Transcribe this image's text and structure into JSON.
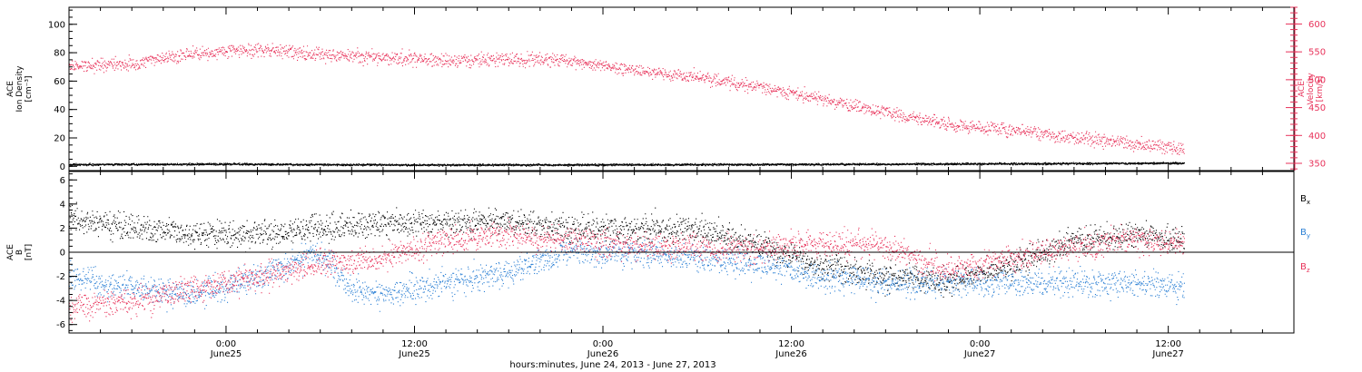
{
  "figure": {
    "footer": "hours:minutes, June 24, 2013 - June 27, 2013"
  },
  "x_axis": {
    "tick_labels": [
      {
        "time": "0:00",
        "date": "June25"
      },
      {
        "time": "12:00",
        "date": "June25"
      },
      {
        "time": "0:00",
        "date": "June26"
      },
      {
        "time": "12:00",
        "date": "June26"
      },
      {
        "time": "0:00",
        "date": "June27"
      },
      {
        "time": "12:00",
        "date": "June27"
      }
    ]
  },
  "chart_data": [
    {
      "type": "scatter",
      "panel": "top",
      "xlim": [
        "2013-06-24T14:00",
        "2013-06-27T20:00"
      ],
      "left_axis": {
        "label": [
          "ACE",
          "Ion Density",
          "[cm⁻³]"
        ],
        "ylim": [
          -3,
          112
        ],
        "ticks": [
          0,
          20,
          40,
          60,
          80,
          100
        ],
        "color": "#000000"
      },
      "right_axis": {
        "label": [
          "ACE",
          "Velocity",
          "[km/s]"
        ],
        "ylim": [
          337,
          630
        ],
        "ticks": [
          350,
          400,
          450,
          500,
          550,
          600
        ],
        "color": "#e8325a"
      },
      "series": [
        {
          "axis": "right",
          "color": "#e8325a",
          "x": [
            "2013-06-24T14:00",
            "2013-06-24T18:00",
            "2013-06-24T22:00",
            "2013-06-25T02:00",
            "2013-06-25T06:00",
            "2013-06-25T10:00",
            "2013-06-25T14:00",
            "2013-06-25T18:00",
            "2013-06-25T22:00",
            "2013-06-26T02:00",
            "2013-06-26T06:00",
            "2013-06-26T10:00",
            "2013-06-26T14:00",
            "2013-06-26T18:00",
            "2013-06-26T22:00",
            "2013-06-27T02:00",
            "2013-06-27T06:00",
            "2013-06-27T10:00",
            "2013-06-27T13:00"
          ],
          "y": [
            525,
            530,
            548,
            555,
            545,
            540,
            535,
            538,
            535,
            518,
            505,
            488,
            465,
            442,
            420,
            410,
            396,
            385,
            378
          ]
        },
        {
          "axis": "left",
          "color": "#000000",
          "x": [
            "2013-06-24T14:00",
            "2013-06-25T00:00",
            "2013-06-25T12:00",
            "2013-06-26T00:00",
            "2013-06-26T12:00",
            "2013-06-27T00:00",
            "2013-06-27T13:00"
          ],
          "y": [
            1.5,
            1.8,
            1.2,
            1.3,
            1.6,
            2.0,
            2.5
          ]
        }
      ]
    },
    {
      "type": "scatter",
      "panel": "bottom",
      "xlim": [
        "2013-06-24T14:00",
        "2013-06-27T20:00"
      ],
      "left_axis": {
        "label": [
          "ACE",
          "B",
          "[nT]"
        ],
        "ylim": [
          -6.7,
          6.7
        ],
        "ticks": [
          -6,
          -4,
          -2,
          0,
          2,
          4,
          6
        ]
      },
      "series": [
        {
          "name": "Bx",
          "color": "#000000",
          "x": [
            "2013-06-24T14:00",
            "2013-06-24T18:00",
            "2013-06-24T22:00",
            "2013-06-25T02:00",
            "2013-06-25T06:00",
            "2013-06-25T10:00",
            "2013-06-25T14:00",
            "2013-06-25T18:00",
            "2013-06-25T22:00",
            "2013-06-26T02:00",
            "2013-06-26T06:00",
            "2013-06-26T10:00",
            "2013-06-26T14:00",
            "2013-06-26T18:00",
            "2013-06-26T22:00",
            "2013-06-27T02:00",
            "2013-06-27T06:00",
            "2013-06-27T10:00",
            "2013-06-27T13:00"
          ],
          "y": [
            3.0,
            2.0,
            1.5,
            1.5,
            2.0,
            2.5,
            2.5,
            2.6,
            2.0,
            2.0,
            2.0,
            0.5,
            -1.0,
            -2.0,
            -2.5,
            -1.0,
            1.0,
            1.5,
            1.0
          ]
        },
        {
          "name": "By",
          "color": "#2a7fd4",
          "x": [
            "2013-06-24T14:00",
            "2013-06-24T18:00",
            "2013-06-24T22:00",
            "2013-06-25T02:00",
            "2013-06-25T06:00",
            "2013-06-25T08:00",
            "2013-06-25T10:00",
            "2013-06-25T14:00",
            "2013-06-25T18:00",
            "2013-06-25T22:00",
            "2013-06-26T02:00",
            "2013-06-26T06:00",
            "2013-06-26T10:00",
            "2013-06-26T14:00",
            "2013-06-26T18:00",
            "2013-06-26T22:00",
            "2013-06-27T02:00",
            "2013-06-27T06:00",
            "2013-06-27T10:00",
            "2013-06-27T13:00"
          ],
          "y": [
            -2.0,
            -3.0,
            -3.5,
            -2.0,
            0.0,
            -3.0,
            -3.5,
            -2.5,
            -1.5,
            0.0,
            0.0,
            -0.5,
            -1.0,
            -2.0,
            -2.5,
            -2.5,
            -2.5,
            -2.5,
            -2.5,
            -3.0
          ]
        },
        {
          "name": "Bz",
          "color": "#e8325a",
          "x": [
            "2013-06-24T14:00",
            "2013-06-24T18:00",
            "2013-06-24T22:00",
            "2013-06-25T02:00",
            "2013-06-25T06:00",
            "2013-06-25T10:00",
            "2013-06-25T14:00",
            "2013-06-25T18:00",
            "2013-06-25T22:00",
            "2013-06-26T02:00",
            "2013-06-26T06:00",
            "2013-06-26T10:00",
            "2013-06-26T14:00",
            "2013-06-26T18:00",
            "2013-06-26T22:00",
            "2013-06-27T02:00",
            "2013-06-27T06:00",
            "2013-06-27T10:00",
            "2013-06-27T13:00"
          ],
          "y": [
            -4.5,
            -4.0,
            -3.0,
            -2.0,
            -1.0,
            -0.5,
            1.0,
            1.5,
            1.0,
            0.5,
            0.5,
            0.3,
            0.8,
            0.5,
            -1.5,
            -0.5,
            0.5,
            1.0,
            0.8
          ]
        }
      ]
    }
  ]
}
